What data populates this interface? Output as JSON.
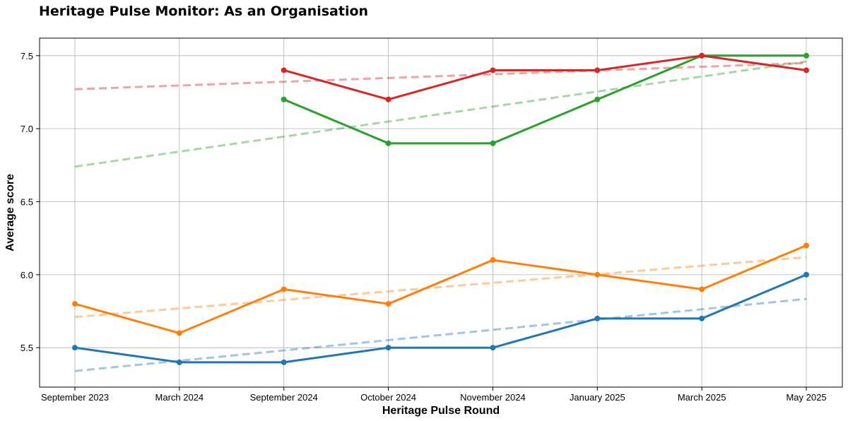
{
  "chart_data": {
    "type": "line",
    "title": "Heritage Pulse Monitor: As an Organisation",
    "xlabel": "Heritage Pulse Round",
    "ylabel": "Average score",
    "categories": [
      "September 2023",
      "March 2024",
      "September 2024",
      "October 2024",
      "November 2024",
      "January 2025",
      "March 2025",
      "May 2025"
    ],
    "ylim": [
      5.23,
      7.62
    ],
    "yticks": [
      5.5,
      6.0,
      6.5,
      7.0,
      7.5
    ],
    "ytick_labels": [
      "5.5",
      "6.0",
      "6.5",
      "7.0",
      "7.5"
    ],
    "grid": true,
    "legend": "none",
    "series": [
      {
        "color": "#1f77b4",
        "values": [
          5.5,
          5.4,
          5.4,
          5.5,
          5.5,
          5.7,
          5.7,
          6.0
        ],
        "trend": [
          5.34,
          5.834
        ]
      },
      {
        "color": "#ff7f0e",
        "values": [
          5.8,
          5.6,
          5.9,
          5.8,
          6.1,
          6.0,
          5.9,
          6.2
        ],
        "trend": [
          5.71,
          6.12
        ]
      },
      {
        "color": "#2ca02c",
        "values": [
          null,
          null,
          7.2,
          6.9,
          6.9,
          7.2,
          7.5,
          7.5
        ],
        "trend": [
          6.74,
          7.46
        ]
      },
      {
        "color": "#d62728",
        "values": [
          null,
          null,
          7.4,
          7.2,
          7.4,
          7.4,
          7.5,
          7.4
        ],
        "trend": [
          7.27,
          7.45
        ]
      }
    ]
  }
}
